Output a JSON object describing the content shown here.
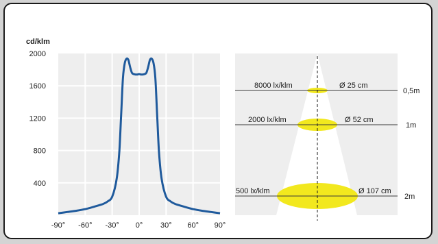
{
  "colors": {
    "curve": "#1f5a9c",
    "plot_bg": "#eeeeee",
    "cone": "#e3e3e3",
    "spot": "#f2e81e",
    "page_bg": "#d4d4d4"
  },
  "chart_data": [
    {
      "type": "line",
      "ylabel": "cd/klm",
      "xlim": [
        -90,
        90
      ],
      "ylim": [
        0,
        2000
      ],
      "x_ticks": [
        "-90°",
        "-60°",
        "-30°",
        "0°",
        "30°",
        "60°",
        "90°"
      ],
      "y_ticks": [
        "2000",
        "1600",
        "1200",
        "800",
        "400"
      ],
      "grid": true,
      "series": [
        {
          "x": [
            -90,
            -80,
            -70,
            -60,
            -50,
            -40,
            -35,
            -30,
            -25,
            -22,
            -20,
            -18,
            -16,
            -14,
            -12,
            -10,
            -8,
            -6,
            -4,
            -2,
            0,
            2,
            4,
            6,
            8,
            10,
            12,
            14,
            16,
            18,
            20,
            22,
            25,
            30,
            35,
            40,
            50,
            60,
            70,
            80,
            90
          ],
          "y": [
            25,
            40,
            55,
            75,
            105,
            140,
            170,
            230,
            450,
            800,
            1250,
            1700,
            1880,
            1935,
            1920,
            1830,
            1760,
            1745,
            1740,
            1740,
            1745,
            1740,
            1740,
            1745,
            1760,
            1830,
            1920,
            1935,
            1880,
            1700,
            1250,
            800,
            450,
            230,
            170,
            140,
            105,
            75,
            55,
            40,
            25
          ]
        }
      ]
    },
    {
      "type": "table",
      "rows": [
        {
          "distance": "0,5m",
          "illuminance": "8000 lx/klm",
          "diameter": "Ø 25 cm"
        },
        {
          "distance": "1m",
          "illuminance": "2000 lx/klm",
          "diameter": "Ø 52 cm"
        },
        {
          "distance": "2m",
          "illuminance": "500 lx/klm",
          "diameter": "Ø 107 cm"
        }
      ]
    }
  ]
}
